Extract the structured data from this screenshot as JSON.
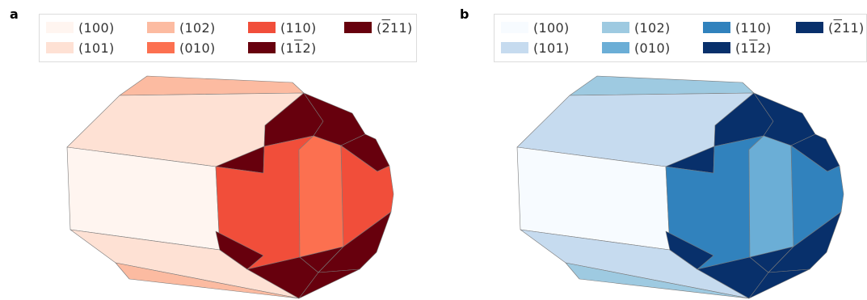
{
  "panels": [
    {
      "id": "a",
      "label": "a",
      "legend": [
        {
          "face": "(100)",
          "pre": "(",
          "bar": "",
          "post": "100)",
          "color": "#fff5f0"
        },
        {
          "face": "(101)",
          "pre": "(",
          "bar": "",
          "post": "101)",
          "color": "#fee1d4"
        },
        {
          "face": "(102)",
          "pre": "(",
          "bar": "",
          "post": "102)",
          "color": "#fcbba1"
        },
        {
          "face": "(010)",
          "pre": "(",
          "bar": "",
          "post": "010)",
          "color": "#fc7050"
        },
        {
          "face": "(110)",
          "pre": "(",
          "bar": "",
          "post": "110)",
          "color": "#f14e3a"
        },
        {
          "face": "(1-12)",
          "pre": "(1",
          "bar": "1",
          "post": "2)",
          "color": "#67000d"
        },
        {
          "face": "(-211)",
          "pre": "(",
          "bar": "2",
          "post": "11)",
          "color": "#67000d"
        }
      ]
    },
    {
      "id": "b",
      "label": "b",
      "legend": [
        {
          "face": "(100)",
          "pre": "(",
          "bar": "",
          "post": "100)",
          "color": "#f7fbff"
        },
        {
          "face": "(101)",
          "pre": "(",
          "bar": "",
          "post": "101)",
          "color": "#c6dbef"
        },
        {
          "face": "(102)",
          "pre": "(",
          "bar": "",
          "post": "102)",
          "color": "#9ecae1"
        },
        {
          "face": "(010)",
          "pre": "(",
          "bar": "",
          "post": "010)",
          "color": "#6baed6"
        },
        {
          "face": "(110)",
          "pre": "(",
          "bar": "",
          "post": "110)",
          "color": "#3182bd"
        },
        {
          "face": "(1-12)",
          "pre": "(1",
          "bar": "1",
          "post": "2)",
          "color": "#08306b"
        },
        {
          "face": "(-211)",
          "pre": "(",
          "bar": "2",
          "post": "11)",
          "color": "#08306b"
        }
      ]
    }
  ]
}
